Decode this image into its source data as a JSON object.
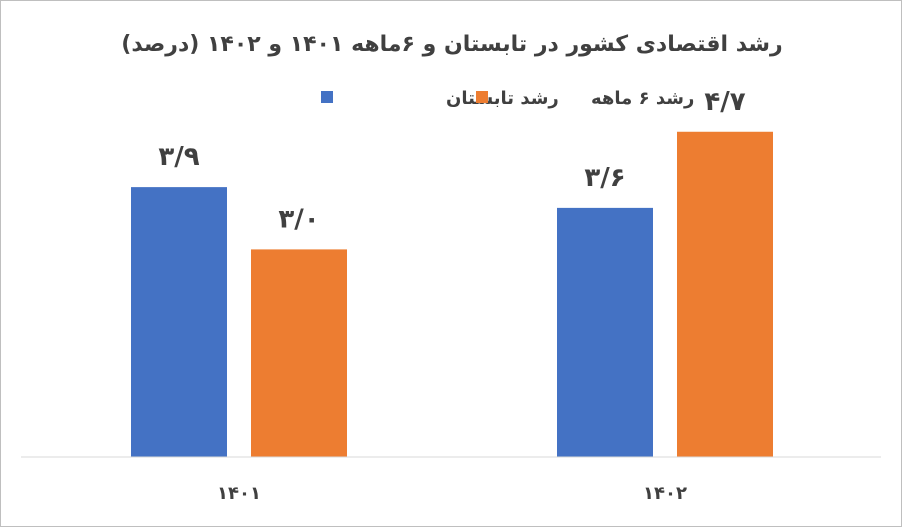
{
  "chart_data": {
    "type": "bar",
    "title": "رشد اقتصادی کشور در تابستان و ۶ماهه ۱۴۰۱ و ۱۴۰۲ (درصد)",
    "categories": [
      "۱۴۰۱",
      "۱۴۰۲"
    ],
    "series": [
      {
        "name": "رشد تابستان",
        "values": [
          3.9,
          3.6
        ],
        "labels": [
          "۳/۹",
          "۳/۶"
        ],
        "color": "#4472C4"
      },
      {
        "name": "رشد ۶ ماهه",
        "values": [
          3.0,
          4.7
        ],
        "labels": [
          "۳/۰",
          "۴/۷"
        ],
        "color": "#ED7D31"
      }
    ],
    "ylim": [
      0,
      5.0
    ],
    "grid": false,
    "legend_position": "top"
  }
}
